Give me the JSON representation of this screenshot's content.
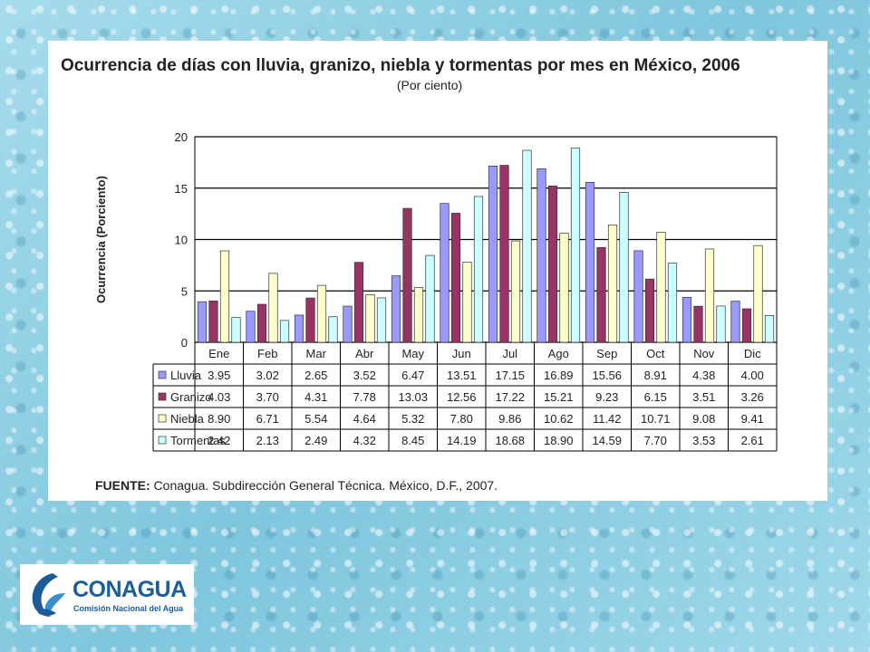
{
  "title": "Ocurrencia de días con lluvia, granizo, niebla y tormentas por mes en México, 2006",
  "subtitle": "(Por ciento)",
  "source_label": "FUENTE:",
  "source_text": " Conagua. Subdirección General Técnica. México, D.F., 2007.",
  "logo": {
    "name": "CONAGUA",
    "subtitle": "Comisión Nacional del Agua",
    "color": "#1c5d99"
  },
  "chart_data": {
    "type": "bar",
    "ylabel": "Ocurrencia (Porciento)",
    "ylim": [
      0,
      20
    ],
    "yticks": [
      0,
      5,
      10,
      15,
      20
    ],
    "grid": true,
    "legend": "table-below",
    "categories": [
      "Ene",
      "Feb",
      "Mar",
      "Abr",
      "May",
      "Jun",
      "Jul",
      "Ago",
      "Sep",
      "Oct",
      "Nov",
      "Dic"
    ],
    "series": [
      {
        "name": "Lluvia",
        "color": "#9999ff",
        "values": [
          "3.95",
          "3.02",
          "2.65",
          "3.52",
          "6.47",
          "13.51",
          "17.15",
          "16.89",
          "15.56",
          "8.91",
          "4.38",
          "4.00"
        ]
      },
      {
        "name": "Granizo",
        "color": "#993366",
        "values": [
          "4.03",
          "3.70",
          "4.31",
          "7.78",
          "13.03",
          "12.56",
          "17.22",
          "15.21",
          "9.23",
          "6.15",
          "3.51",
          "3.26"
        ]
      },
      {
        "name": "Niebla",
        "color": "#ffffcc",
        "values": [
          "8.90",
          "6.71",
          "5.54",
          "4.64",
          "5.32",
          "7.80",
          "9.86",
          "10.62",
          "11.42",
          "10.71",
          "9.08",
          "9.41"
        ]
      },
      {
        "name": "Tormentas",
        "color": "#ccffff",
        "values": [
          "2.42",
          "2.13",
          "2.49",
          "4.32",
          "8.45",
          "14.19",
          "18.68",
          "18.90",
          "14.59",
          "7.70",
          "3.53",
          "2.61"
        ]
      }
    ]
  }
}
